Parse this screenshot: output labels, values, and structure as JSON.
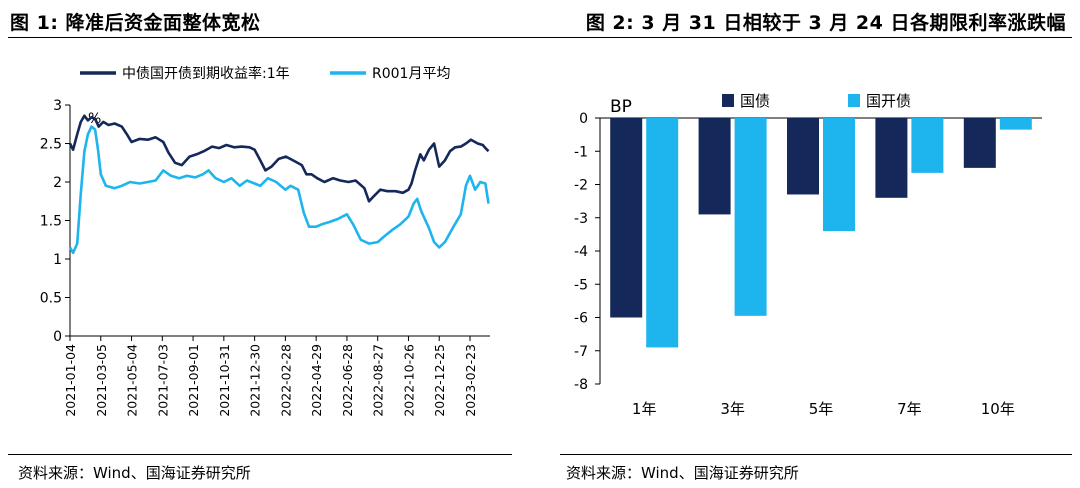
{
  "panel1": {
    "title": "图 1:  降准后资金面整体宽松",
    "source": "资料来源：Wind、国海证券研究所"
  },
  "panel2": {
    "title": "图 2:  3 月 31 日相较于 3 月 24 日各期限利率涨跌幅",
    "source": "资料来源：Wind、国海证券研究所"
  },
  "colors": {
    "navy": "#14285a",
    "cyan": "#1eb4ee"
  },
  "chart_data": [
    {
      "type": "line",
      "unit_label": "%",
      "ylim": [
        0,
        3
      ],
      "yticks": [
        0,
        0.5,
        1,
        1.5,
        2,
        2.5,
        3
      ],
      "ytick_labels": [
        "0",
        "0.5",
        "1",
        "1.5",
        "2",
        "2.5",
        "3"
      ],
      "xlim": [
        "2021-01-04",
        "2023-04-03"
      ],
      "xtick_labels": [
        "2021-01-04",
        "2021-03-05",
        "2021-05-04",
        "2021-07-03",
        "2021-09-01",
        "2021-10-31",
        "2021-12-30",
        "2022-02-28",
        "2022-04-29",
        "2022-06-28",
        "2022-08-27",
        "2022-10-26",
        "2022-12-25",
        "2023-02-23"
      ],
      "legend_position": "top",
      "series": [
        {
          "name": "中债国开债到期收益率:1年",
          "color": "#14285a",
          "points": [
            [
              "2021-01-04",
              2.5
            ],
            [
              "2021-01-10",
              2.42
            ],
            [
              "2021-01-18",
              2.62
            ],
            [
              "2021-01-25",
              2.78
            ],
            [
              "2021-02-01",
              2.86
            ],
            [
              "2021-02-08",
              2.8
            ],
            [
              "2021-02-15",
              2.84
            ],
            [
              "2021-02-22",
              2.82
            ],
            [
              "2021-03-01",
              2.72
            ],
            [
              "2021-03-10",
              2.78
            ],
            [
              "2021-03-20",
              2.74
            ],
            [
              "2021-04-01",
              2.76
            ],
            [
              "2021-04-15",
              2.72
            ],
            [
              "2021-04-25",
              2.62
            ],
            [
              "2021-05-04",
              2.52
            ],
            [
              "2021-05-20",
              2.56
            ],
            [
              "2021-06-05",
              2.55
            ],
            [
              "2021-06-20",
              2.58
            ],
            [
              "2021-07-05",
              2.52
            ],
            [
              "2021-07-15",
              2.38
            ],
            [
              "2021-07-28",
              2.25
            ],
            [
              "2021-08-10",
              2.22
            ],
            [
              "2021-08-25",
              2.33
            ],
            [
              "2021-09-08",
              2.36
            ],
            [
              "2021-09-22",
              2.4
            ],
            [
              "2021-10-08",
              2.46
            ],
            [
              "2021-10-22",
              2.44
            ],
            [
              "2021-11-05",
              2.48
            ],
            [
              "2021-11-20",
              2.45
            ],
            [
              "2021-12-05",
              2.46
            ],
            [
              "2021-12-20",
              2.45
            ],
            [
              "2021-12-30",
              2.42
            ],
            [
              "2022-01-10",
              2.28
            ],
            [
              "2022-01-20",
              2.15
            ],
            [
              "2022-02-01",
              2.2
            ],
            [
              "2022-02-15",
              2.3
            ],
            [
              "2022-03-01",
              2.33
            ],
            [
              "2022-03-15",
              2.28
            ],
            [
              "2022-04-01",
              2.22
            ],
            [
              "2022-04-10",
              2.1
            ],
            [
              "2022-04-20",
              2.1
            ],
            [
              "2022-05-01",
              2.05
            ],
            [
              "2022-05-15",
              2.0
            ],
            [
              "2022-06-01",
              2.05
            ],
            [
              "2022-06-15",
              2.02
            ],
            [
              "2022-07-01",
              2.0
            ],
            [
              "2022-07-15",
              2.02
            ],
            [
              "2022-08-01",
              1.92
            ],
            [
              "2022-08-10",
              1.75
            ],
            [
              "2022-08-20",
              1.82
            ],
            [
              "2022-09-01",
              1.9
            ],
            [
              "2022-09-15",
              1.88
            ],
            [
              "2022-10-01",
              1.88
            ],
            [
              "2022-10-15",
              1.86
            ],
            [
              "2022-10-26",
              1.9
            ],
            [
              "2022-11-01",
              1.98
            ],
            [
              "2022-11-08",
              2.15
            ],
            [
              "2022-11-18",
              2.36
            ],
            [
              "2022-11-25",
              2.28
            ],
            [
              "2022-12-05",
              2.42
            ],
            [
              "2022-12-15",
              2.5
            ],
            [
              "2022-12-25",
              2.2
            ],
            [
              "2023-01-05",
              2.28
            ],
            [
              "2023-01-15",
              2.4
            ],
            [
              "2023-01-25",
              2.45
            ],
            [
              "2023-02-05",
              2.46
            ],
            [
              "2023-02-15",
              2.5
            ],
            [
              "2023-02-25",
              2.55
            ],
            [
              "2023-03-10",
              2.5
            ],
            [
              "2023-03-20",
              2.48
            ],
            [
              "2023-03-25",
              2.44
            ],
            [
              "2023-03-31",
              2.4
            ]
          ]
        },
        {
          "name": "R001月平均",
          "color": "#1eb4ee",
          "points": [
            [
              "2021-01-04",
              1.15
            ],
            [
              "2021-01-10",
              1.08
            ],
            [
              "2021-01-18",
              1.2
            ],
            [
              "2021-01-25",
              1.85
            ],
            [
              "2021-02-01",
              2.4
            ],
            [
              "2021-02-08",
              2.62
            ],
            [
              "2021-02-15",
              2.72
            ],
            [
              "2021-02-22",
              2.68
            ],
            [
              "2021-02-28",
              2.4
            ],
            [
              "2021-03-05",
              2.1
            ],
            [
              "2021-03-15",
              1.95
            ],
            [
              "2021-04-01",
              1.92
            ],
            [
              "2021-04-15",
              1.95
            ],
            [
              "2021-05-01",
              2.0
            ],
            [
              "2021-05-20",
              1.98
            ],
            [
              "2021-06-05",
              2.0
            ],
            [
              "2021-06-20",
              2.02
            ],
            [
              "2021-07-05",
              2.15
            ],
            [
              "2021-07-20",
              2.08
            ],
            [
              "2021-08-05",
              2.05
            ],
            [
              "2021-08-20",
              2.08
            ],
            [
              "2021-09-05",
              2.06
            ],
            [
              "2021-09-20",
              2.1
            ],
            [
              "2021-10-01",
              2.15
            ],
            [
              "2021-10-15",
              2.05
            ],
            [
              "2021-10-31",
              2.0
            ],
            [
              "2021-11-15",
              2.05
            ],
            [
              "2021-12-01",
              1.95
            ],
            [
              "2021-12-15",
              2.02
            ],
            [
              "2021-12-30",
              1.98
            ],
            [
              "2022-01-10",
              1.95
            ],
            [
              "2022-01-25",
              2.05
            ],
            [
              "2022-02-10",
              2.0
            ],
            [
              "2022-02-28",
              1.9
            ],
            [
              "2022-03-10",
              1.95
            ],
            [
              "2022-03-25",
              1.9
            ],
            [
              "2022-04-05",
              1.6
            ],
            [
              "2022-04-15",
              1.42
            ],
            [
              "2022-04-29",
              1.42
            ],
            [
              "2022-05-10",
              1.45
            ],
            [
              "2022-05-25",
              1.48
            ],
            [
              "2022-06-10",
              1.52
            ],
            [
              "2022-06-28",
              1.58
            ],
            [
              "2022-07-10",
              1.45
            ],
            [
              "2022-07-25",
              1.25
            ],
            [
              "2022-08-10",
              1.2
            ],
            [
              "2022-08-27",
              1.22
            ],
            [
              "2022-09-10",
              1.3
            ],
            [
              "2022-09-25",
              1.38
            ],
            [
              "2022-10-10",
              1.45
            ],
            [
              "2022-10-26",
              1.55
            ],
            [
              "2022-11-05",
              1.72
            ],
            [
              "2022-11-12",
              1.78
            ],
            [
              "2022-11-20",
              1.62
            ],
            [
              "2022-12-05",
              1.4
            ],
            [
              "2022-12-15",
              1.22
            ],
            [
              "2022-12-25",
              1.15
            ],
            [
              "2023-01-05",
              1.22
            ],
            [
              "2023-01-20",
              1.4
            ],
            [
              "2023-02-05",
              1.58
            ],
            [
              "2023-02-15",
              1.95
            ],
            [
              "2023-02-23",
              2.08
            ],
            [
              "2023-03-05",
              1.9
            ],
            [
              "2023-03-15",
              2.0
            ],
            [
              "2023-03-25",
              1.98
            ],
            [
              "2023-03-31",
              1.72
            ]
          ]
        }
      ]
    },
    {
      "type": "bar",
      "unit_label": "BP",
      "categories": [
        "1年",
        "3年",
        "5年",
        "7年",
        "10年"
      ],
      "ylim": [
        -8,
        0
      ],
      "yticks": [
        0,
        -1,
        -2,
        -3,
        -4,
        -5,
        -6,
        -7,
        -8
      ],
      "ytick_labels": [
        "0",
        "-1",
        "-2",
        "-3",
        "-4",
        "-5",
        "-6",
        "-7",
        "-8"
      ],
      "legend_position": "top",
      "series": [
        {
          "name": "国债",
          "color": "#14285a",
          "values": [
            -6.0,
            -2.9,
            -2.3,
            -2.4,
            -1.5
          ]
        },
        {
          "name": "国开债",
          "color": "#1eb4ee",
          "values": [
            -6.9,
            -5.95,
            -3.4,
            -1.65,
            -0.35
          ]
        }
      ]
    }
  ]
}
